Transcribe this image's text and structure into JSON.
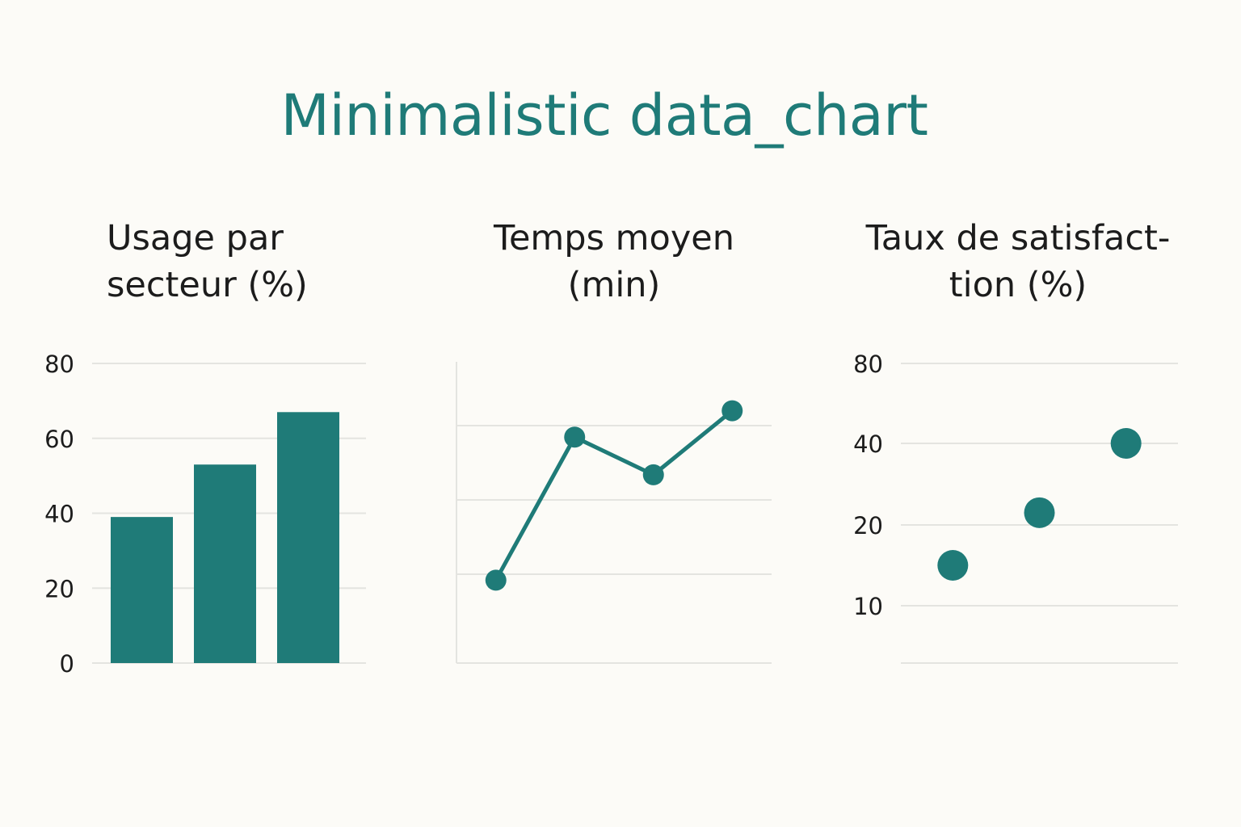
{
  "title": "Minimalistic data_chart",
  "colors": {
    "accent": "#1f7b78",
    "grid": "#e4e4e0",
    "text": "#1c1c1c",
    "background": "#fcfbf7"
  },
  "chart_data": [
    {
      "type": "bar",
      "title_lines": [
        "Usage par",
        "secteur (%)"
      ],
      "categories": [
        "",
        "",
        ""
      ],
      "values": [
        39,
        53,
        67
      ],
      "yticks": [
        0,
        20,
        40,
        60,
        80
      ],
      "ylim": [
        0,
        80
      ],
      "grid": true,
      "xlabel": "",
      "ylabel": ""
    },
    {
      "type": "line",
      "title_lines": [
        "Temps moyen",
        "(min)"
      ],
      "x": [
        1,
        2,
        3,
        4
      ],
      "y": [
        22,
        60,
        50,
        67
      ],
      "xlim": [
        0.5,
        4.5
      ],
      "ylim": [
        0,
        80
      ],
      "yticks": [],
      "grid": true,
      "xlabel": "",
      "ylabel": ""
    },
    {
      "type": "scatter",
      "title_lines": [
        "Taux de satisfact-",
        "tion (%)"
      ],
      "x": [
        1,
        2,
        3
      ],
      "y": [
        15,
        23,
        40
      ],
      "xlim": [
        0.4,
        3.6
      ],
      "yticks": [
        10,
        20,
        40,
        80
      ],
      "grid": true,
      "xlabel": "",
      "ylabel": ""
    }
  ]
}
